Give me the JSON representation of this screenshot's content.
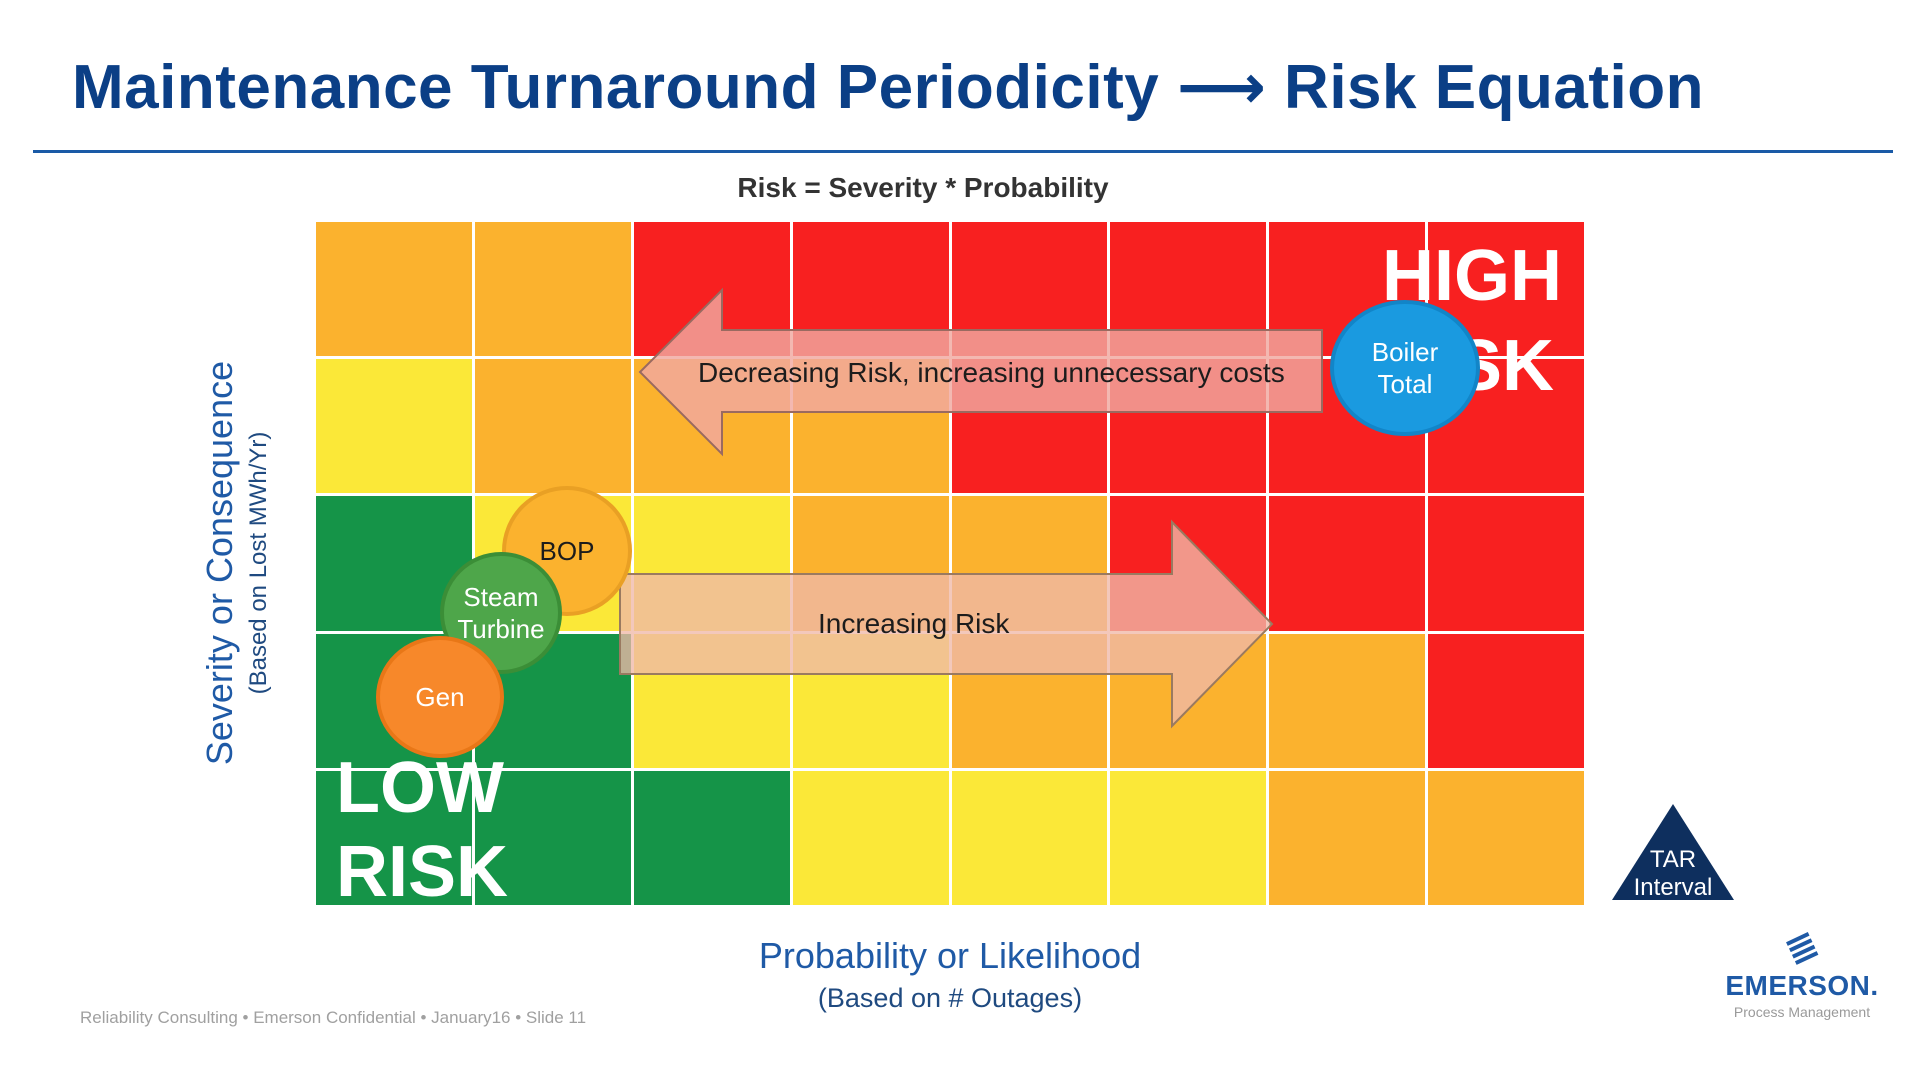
{
  "header": {
    "title": "Maintenance Turnaround Periodicity ⟶ Risk Equation"
  },
  "diagram": {
    "equation": "Risk = Severity * Probability",
    "colors": {
      "red": "#f82020",
      "orange": "#fbb22e",
      "yellow": "#fbe838",
      "green": "#159448"
    },
    "matrix": [
      [
        "orange",
        "orange",
        "red",
        "red",
        "red",
        "red",
        "red",
        "red"
      ],
      [
        "yellow",
        "orange",
        "orange",
        "orange",
        "red",
        "red",
        "red",
        "red"
      ],
      [
        "green",
        "yellow",
        "yellow",
        "orange",
        "orange",
        "red",
        "red",
        "red"
      ],
      [
        "green",
        "green",
        "yellow",
        "yellow",
        "orange",
        "orange",
        "orange",
        "red"
      ],
      [
        "green",
        "green",
        "green",
        "yellow",
        "yellow",
        "yellow",
        "orange",
        "orange"
      ]
    ],
    "high_risk": {
      "line1": "HIGH",
      "line2": "RISK"
    },
    "low_risk": {
      "line1": "LOW",
      "line2": "RISK"
    },
    "arrows": {
      "decreasing": "Decreasing Risk, increasing unnecessary costs",
      "increasing": "Increasing Risk"
    },
    "bubbles": {
      "boiler": {
        "line1": "Boiler",
        "line2": "Total"
      },
      "bop": {
        "line1": "BOP"
      },
      "steam": {
        "line1": "Steam",
        "line2": "Turbine"
      },
      "gen": {
        "line1": "Gen"
      }
    },
    "y_axis": {
      "label": "Severity or Consequence",
      "sublabel": "(Based on Lost MWh/Yr)"
    },
    "x_axis": {
      "label": "Probability or Likelihood",
      "sublabel": "(Based on # Outages)"
    },
    "tar": {
      "line1": "TAR",
      "line2": "Interval"
    }
  },
  "footer": {
    "text": "Reliability Consulting • Emerson Confidential • January16 • Slide 11"
  },
  "logo": {
    "name": "EMERSON.",
    "sub": "Process Management"
  }
}
